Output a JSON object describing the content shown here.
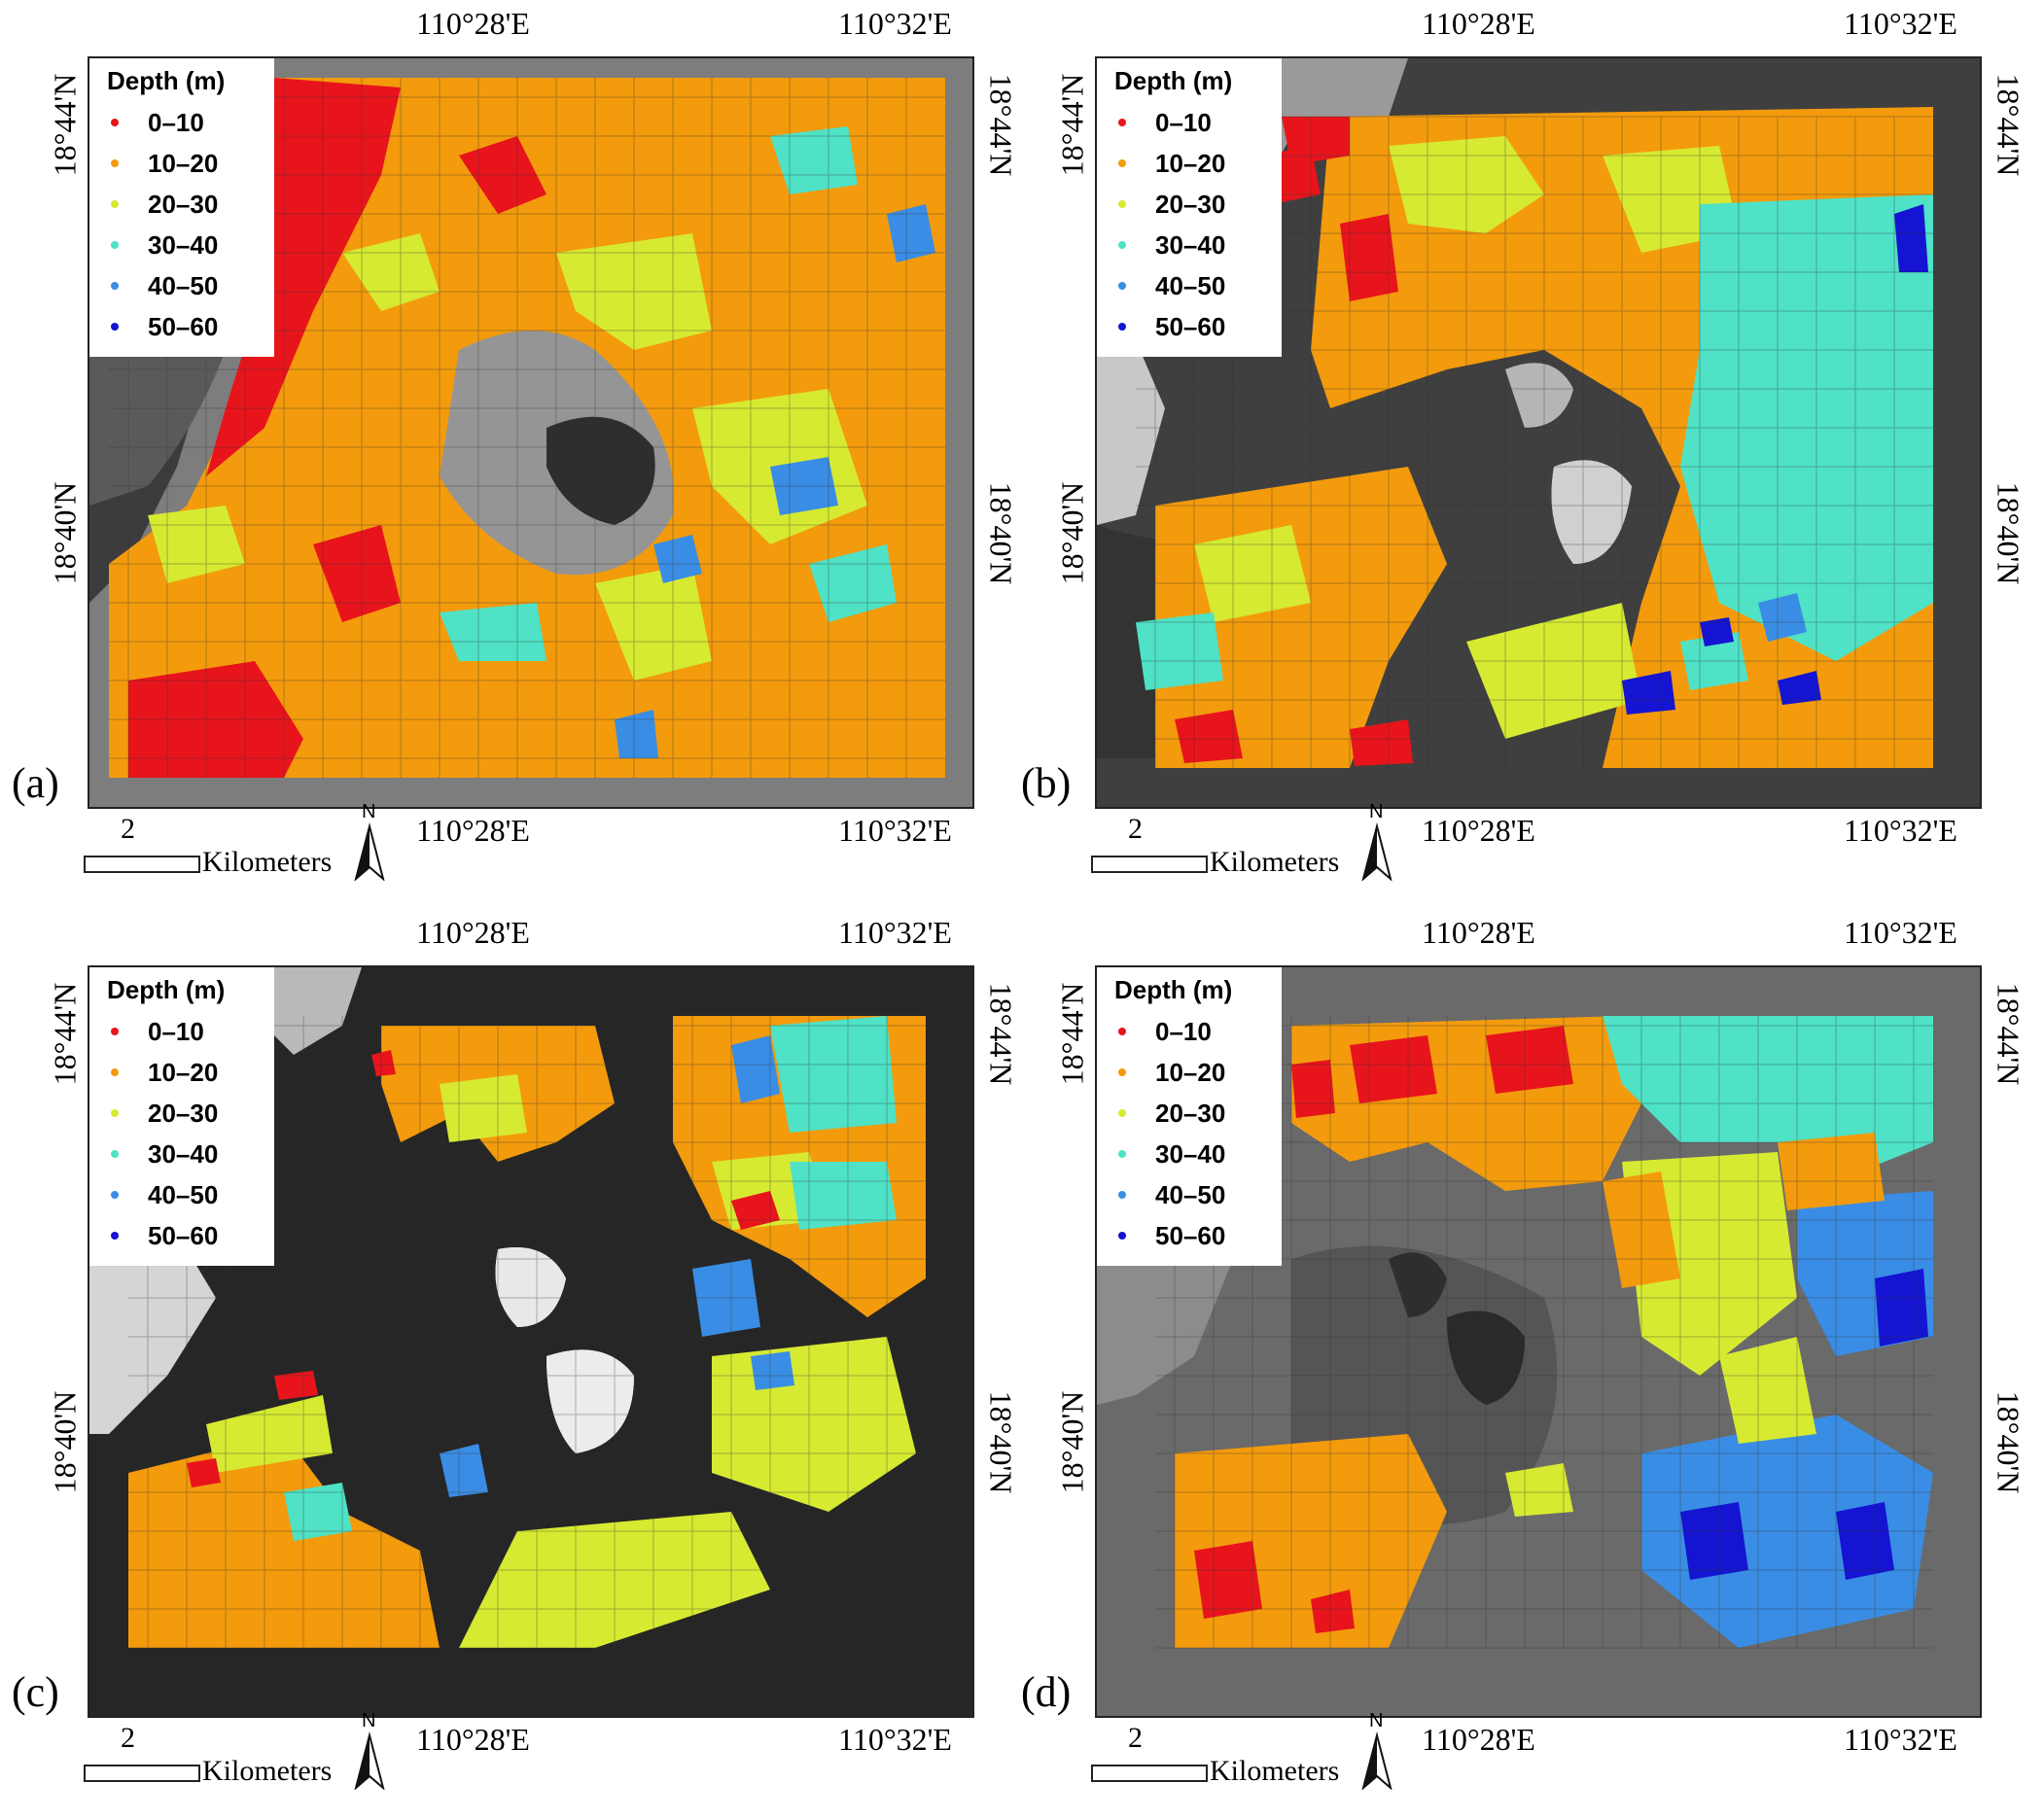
{
  "legend": {
    "title": "Depth (m)",
    "classes": [
      {
        "label": "0–10",
        "color": "#e8141c"
      },
      {
        "label": "10–20",
        "color": "#f39b0c"
      },
      {
        "label": "20–30",
        "color": "#d6ea32"
      },
      {
        "label": "30–40",
        "color": "#4fe2c6"
      },
      {
        "label": "40–50",
        "color": "#3a8de4"
      },
      {
        "label": "50–60",
        "color": "#1414d2"
      }
    ]
  },
  "axes": {
    "lon_left": "110°28'E",
    "lon_right": "110°32'E",
    "lat_top": "18°44'N",
    "lat_bottom": "18°40'N"
  },
  "scale_bar": {
    "value": "2",
    "unit": "Kilometers"
  },
  "north_arrow": {
    "letter": "N",
    "icon": "north-arrow-icon"
  },
  "panels": [
    {
      "id": "a",
      "label": "(a)"
    },
    {
      "id": "b",
      "label": "(b)"
    },
    {
      "id": "c",
      "label": "(c)"
    },
    {
      "id": "d",
      "label": "(d)"
    }
  ]
}
